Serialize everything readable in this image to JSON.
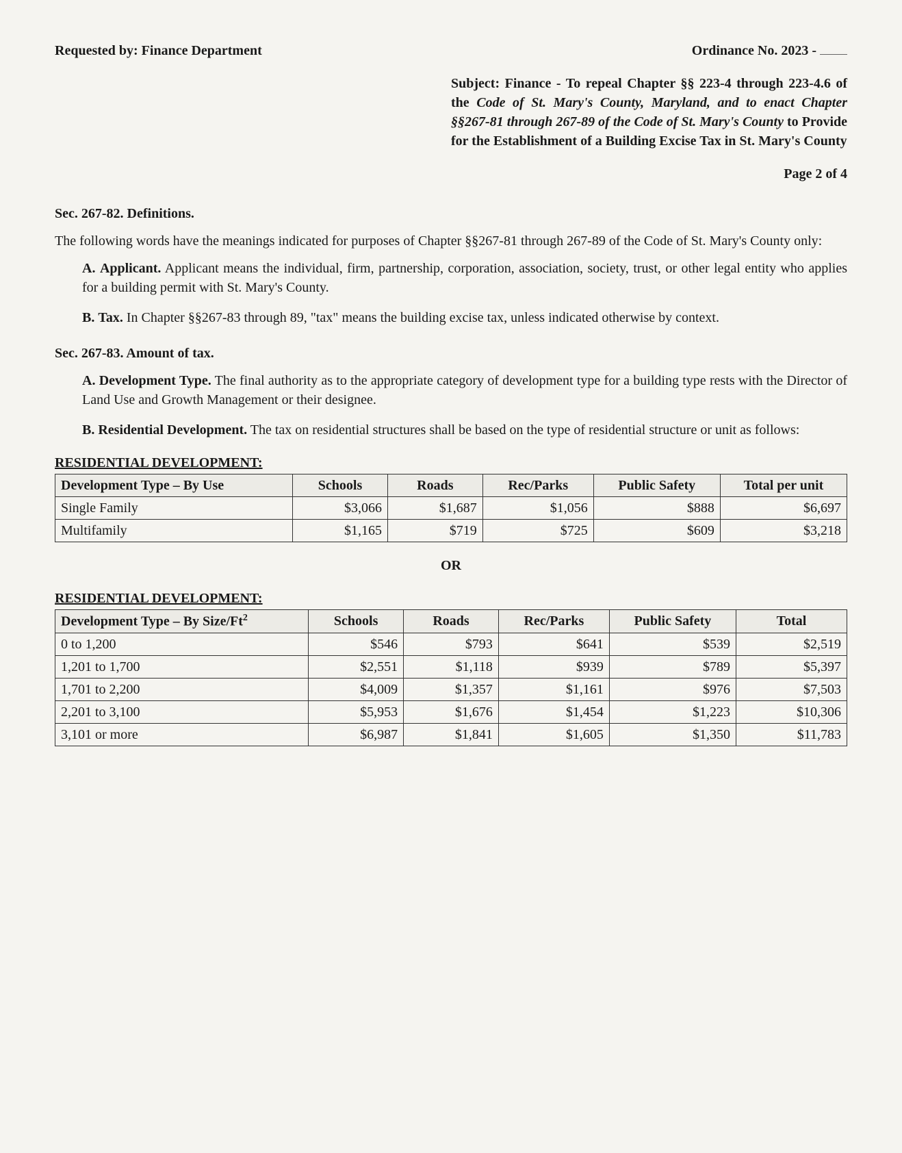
{
  "header": {
    "requested_by_label": "Requested by:",
    "requested_by_value": "Finance Department",
    "ordinance_label": "Ordinance No. 2023 -"
  },
  "subject": {
    "label": "Subject:",
    "text_before_em1": "Finance - To repeal Chapter §§ 223-4 through 223-4.6 of the ",
    "em1": "Code of St. Mary's County, Maryland, and to enact Chapter §§267-81 through 267-89 of the Code of St. Mary's County",
    "text_after_em1": " to Provide for the Establishment of a Building Excise Tax in St. Mary's County"
  },
  "page_num": "Page 2 of 4",
  "sec82": {
    "heading": "Sec. 267-82.  Definitions.",
    "intro": "The following words have the meanings indicated for purposes of Chapter §§267-81 through 267-89 of the Code of St. Mary's County only:",
    "items": [
      {
        "marker": "A.",
        "term": "Applicant.",
        "rest": " Applicant means the individual, firm, partnership, corporation, association, society, trust, or other legal entity who applies for a building permit with St. Mary's County."
      },
      {
        "marker": "B.",
        "term": "Tax.",
        "rest": " In Chapter §§267-83 through 89, \"tax\" means the building excise tax, unless indicated otherwise by context."
      }
    ]
  },
  "sec83": {
    "heading": "Sec. 267-83. Amount of tax.",
    "items": [
      {
        "marker": "A.",
        "term": "Development Type.",
        "rest": " The final authority as to the appropriate category of development type for a building type rests with the Director of Land Use and Growth Management or their designee."
      },
      {
        "marker": "B.",
        "term": "Residential Development.",
        "rest": "  The tax on residential structures shall be based on the type of residential structure or unit as follows:"
      }
    ]
  },
  "table1": {
    "title": "RESIDENTIAL DEVELOPMENT:",
    "columns": [
      "Development Type – By Use",
      "Schools",
      "Roads",
      "Rec/Parks",
      "Public Safety",
      "Total per unit"
    ],
    "rows": [
      [
        "Single Family",
        "$3,066",
        "$1,687",
        "$1,056",
        "$888",
        "$6,697"
      ],
      [
        "Multifamily",
        "$1,165",
        "$719",
        "$725",
        "$609",
        "$3,218"
      ]
    ],
    "col_widths": [
      "30%",
      "12%",
      "12%",
      "14%",
      "16%",
      "16%"
    ]
  },
  "or_sep": "OR",
  "table2": {
    "title": "RESIDENTIAL DEVELOPMENT:",
    "col0_prefix": "Development Type – By Size/Ft",
    "col0_sup": "2",
    "columns_rest": [
      "Schools",
      "Roads",
      "Rec/Parks",
      "Public Safety",
      "Total"
    ],
    "rows": [
      [
        "0 to 1,200",
        "$546",
        "$793",
        "$641",
        "$539",
        "$2,519"
      ],
      [
        "1,201 to 1,700",
        "$2,551",
        "$1,118",
        "$939",
        "$789",
        "$5,397"
      ],
      [
        "1,701 to 2,200",
        "$4,009",
        "$1,357",
        "$1,161",
        "$976",
        "$7,503"
      ],
      [
        "2,201 to 3,100",
        "$5,953",
        "$1,676",
        "$1,454",
        "$1,223",
        "$10,306"
      ],
      [
        "3,101 or more",
        "$6,987",
        "$1,841",
        "$1,605",
        "$1,350",
        "$11,783"
      ]
    ],
    "col_widths": [
      "32%",
      "12%",
      "12%",
      "14%",
      "16%",
      "14%"
    ]
  }
}
